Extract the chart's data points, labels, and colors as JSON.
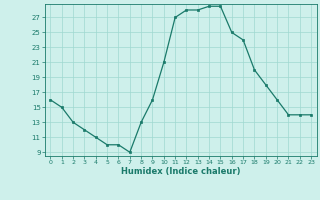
{
  "x": [
    0,
    1,
    2,
    3,
    4,
    5,
    6,
    7,
    8,
    9,
    10,
    11,
    12,
    13,
    14,
    15,
    16,
    17,
    18,
    19,
    20,
    21,
    22,
    23
  ],
  "y": [
    16,
    15,
    13,
    12,
    11,
    10,
    10,
    9,
    13,
    16,
    21,
    27,
    28,
    28,
    28.5,
    28.5,
    25,
    24,
    20,
    18,
    16,
    14,
    14,
    14
  ],
  "line_color": "#1a7a6a",
  "marker_color": "#1a7a6a",
  "bg_color": "#cef0eb",
  "grid_color": "#a0d8d0",
  "xlabel": "Humidex (Indice chaleur)",
  "ylim": [
    8.5,
    28.8
  ],
  "xlim": [
    -0.5,
    23.5
  ],
  "yticks": [
    9,
    11,
    13,
    15,
    17,
    19,
    21,
    23,
    25,
    27
  ],
  "xticks": [
    0,
    1,
    2,
    3,
    4,
    5,
    6,
    7,
    8,
    9,
    10,
    11,
    12,
    13,
    14,
    15,
    16,
    17,
    18,
    19,
    20,
    21,
    22,
    23
  ],
  "marker_size": 2.0,
  "line_width": 0.9
}
